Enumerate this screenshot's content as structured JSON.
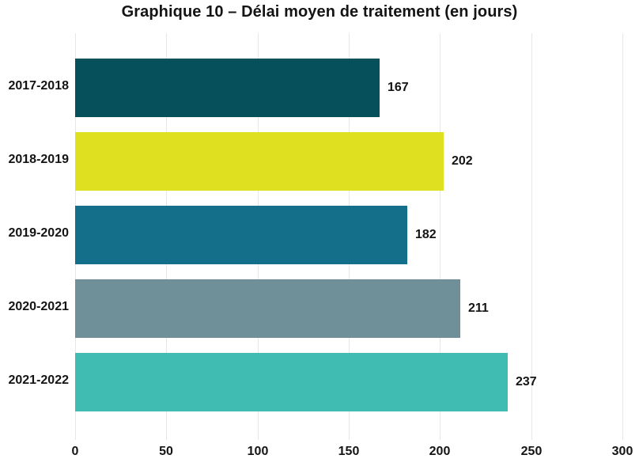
{
  "title": "Graphique 10 – Délai moyen de traitement (en jours)",
  "chart_data": {
    "type": "bar",
    "orientation": "horizontal",
    "title": "Graphique 10 – Délai moyen de traitement (en jours)",
    "categories": [
      "2017-2018",
      "2018-2019",
      "2019-2020",
      "2020-2021",
      "2021-2022"
    ],
    "values": [
      167,
      202,
      182,
      211,
      237
    ],
    "bar_colors": [
      "#05505b",
      "#dee020",
      "#146f8a",
      "#6f8f99",
      "#40bcb2"
    ],
    "data_labels": [
      "167",
      "202",
      "182",
      "211",
      "237"
    ],
    "xlabel": "",
    "ylabel": "",
    "xlim": [
      0,
      300
    ],
    "x_ticks": [
      0,
      50,
      100,
      150,
      200,
      250,
      300
    ],
    "grid": "vertical",
    "gridline_color": "#e7e7e7",
    "text_color": "#141414",
    "legend": "none",
    "background_color": "#ffffff"
  }
}
